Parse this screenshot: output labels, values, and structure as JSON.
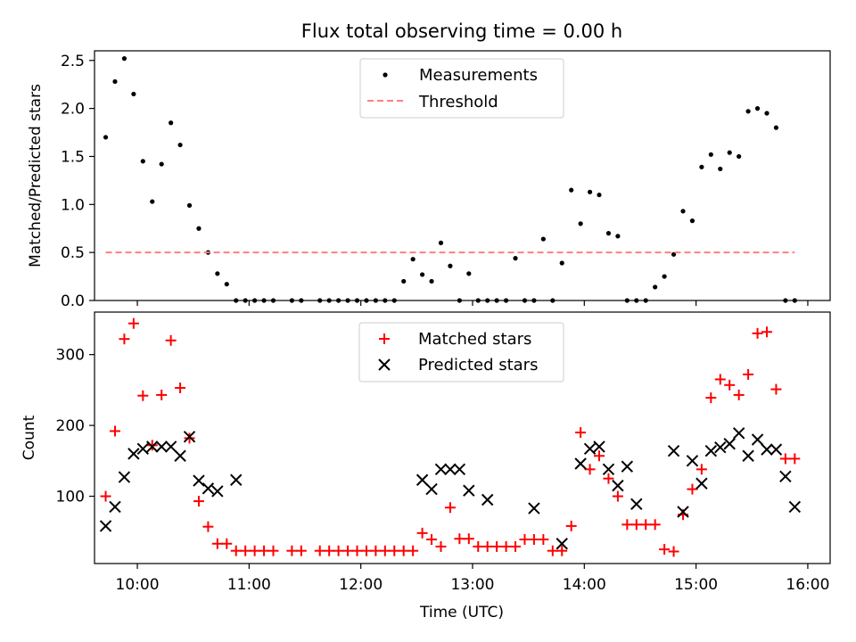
{
  "chart_data": [
    {
      "type": "scatter",
      "title": "Flux total observing time = 0.00 h",
      "xlabel": "",
      "ylabel": "Matched/Predicted stars",
      "ylim": [
        0,
        2.6
      ],
      "xlim": [
        "09:37",
        "16:12"
      ],
      "yticks": [
        "0.0",
        "0.5",
        "1.0",
        "1.5",
        "2.0",
        "2.5"
      ],
      "legend_position": "top-center",
      "series": [
        {
          "name": "Measurements",
          "marker": "dot",
          "color": "#000000",
          "x": [
            "09:43",
            "09:48",
            "09:53",
            "09:58",
            "10:03",
            "10:08",
            "10:13",
            "10:18",
            "10:23",
            "10:28",
            "10:33",
            "10:38",
            "10:43",
            "10:48",
            "10:53",
            "10:58",
            "11:03",
            "11:08",
            "11:13",
            "11:23",
            "11:28",
            "11:38",
            "11:43",
            "11:48",
            "11:53",
            "11:58",
            "12:03",
            "12:08",
            "12:13",
            "12:18",
            "12:23",
            "12:28",
            "12:33",
            "12:38",
            "12:43",
            "12:48",
            "12:53",
            "12:58",
            "13:03",
            "13:08",
            "13:13",
            "13:18",
            "13:23",
            "13:28",
            "13:33",
            "13:38",
            "13:43",
            "13:48",
            "13:53",
            "13:58",
            "14:03",
            "14:08",
            "14:13",
            "14:18",
            "14:23",
            "14:28",
            "14:33",
            "14:38",
            "14:43",
            "14:48",
            "14:53",
            "14:58",
            "15:03",
            "15:08",
            "15:13",
            "15:18",
            "15:23",
            "15:28",
            "15:33",
            "15:38",
            "15:43",
            "15:48",
            "15:53"
          ],
          "y": [
            1.7,
            2.28,
            2.52,
            2.15,
            1.45,
            1.03,
            1.42,
            1.85,
            1.62,
            0.99,
            0.75,
            0.5,
            0.28,
            0.17,
            0.0,
            0.0,
            0.0,
            0.0,
            0.0,
            0.0,
            0.0,
            0.0,
            0.0,
            0.0,
            0.0,
            0.0,
            0.0,
            0.0,
            0.0,
            0.0,
            0.2,
            0.43,
            0.27,
            0.2,
            0.6,
            0.36,
            0.0,
            0.28,
            0.0,
            0.0,
            0.0,
            0.0,
            0.44,
            0.0,
            0.0,
            0.64,
            0.0,
            0.39,
            1.15,
            0.8,
            1.13,
            1.1,
            0.7,
            0.67,
            0.0,
            0.0,
            0.0,
            0.14,
            0.25,
            0.48,
            0.93,
            0.83,
            1.39,
            1.52,
            1.37,
            1.54,
            1.5,
            1.97,
            2.0,
            1.95,
            1.8,
            0.0,
            0.0
          ]
        },
        {
          "name": "Threshold",
          "style": "dashed",
          "color": "#ff7f7f",
          "x": [
            "09:43",
            "15:53"
          ],
          "y": [
            0.5,
            0.5
          ]
        }
      ]
    },
    {
      "type": "scatter",
      "xlabel": "Time (UTC)",
      "ylabel": "Count",
      "ylim": [
        5,
        360
      ],
      "xlim": [
        "09:37",
        "16:12"
      ],
      "xticks": [
        "10:00",
        "11:00",
        "12:00",
        "13:00",
        "14:00",
        "15:00",
        "16:00"
      ],
      "yticks": [
        "100",
        "200",
        "300"
      ],
      "legend_position": "top-center",
      "series": [
        {
          "name": "Matched stars",
          "marker": "plus",
          "color": "#ff0000",
          "x": [
            "09:43",
            "09:48",
            "09:53",
            "09:58",
            "10:03",
            "10:08",
            "10:13",
            "10:18",
            "10:23",
            "10:28",
            "10:33",
            "10:38",
            "10:43",
            "10:48",
            "10:53",
            "10:58",
            "11:03",
            "11:08",
            "11:13",
            "11:23",
            "11:28",
            "11:38",
            "11:43",
            "11:48",
            "11:53",
            "11:58",
            "12:03",
            "12:08",
            "12:13",
            "12:18",
            "12:23",
            "12:28",
            "12:33",
            "12:38",
            "12:43",
            "12:48",
            "12:53",
            "12:58",
            "13:03",
            "13:08",
            "13:13",
            "13:18",
            "13:23",
            "13:28",
            "13:33",
            "13:38",
            "13:43",
            "13:48",
            "13:53",
            "13:58",
            "14:03",
            "14:08",
            "14:13",
            "14:18",
            "14:23",
            "14:28",
            "14:33",
            "14:38",
            "14:43",
            "14:48",
            "14:53",
            "14:58",
            "15:03",
            "15:08",
            "15:13",
            "15:18",
            "15:23",
            "15:28",
            "15:33",
            "15:38",
            "15:43",
            "15:48",
            "15:53"
          ],
          "y": [
            100,
            192,
            322,
            344,
            242,
            172,
            243,
            320,
            253,
            182,
            93,
            57,
            33,
            33,
            23,
            23,
            23,
            23,
            23,
            23,
            23,
            23,
            23,
            23,
            23,
            23,
            23,
            23,
            23,
            23,
            23,
            23,
            48,
            39,
            29,
            84,
            40,
            40,
            29,
            29,
            29,
            29,
            29,
            39,
            39,
            39,
            23,
            23,
            58,
            190,
            138,
            157,
            125,
            100,
            60,
            60,
            60,
            60,
            25,
            22,
            74,
            110,
            138,
            239,
            265,
            257,
            243,
            272,
            330,
            332,
            251,
            153,
            153
          ]
        },
        {
          "name": "Predicted stars",
          "marker": "x",
          "color": "#000000",
          "x": [
            "09:43",
            "09:48",
            "09:53",
            "09:58",
            "10:03",
            "10:08",
            "10:13",
            "10:18",
            "10:23",
            "10:28",
            "10:33",
            "10:38",
            "10:43",
            "10:53",
            "12:33",
            "12:38",
            "12:43",
            "12:48",
            "12:53",
            "12:58",
            "13:08",
            "13:33",
            "13:48",
            "13:58",
            "14:03",
            "14:08",
            "14:13",
            "14:18",
            "14:23",
            "14:28",
            "14:48",
            "14:53",
            "14:58",
            "15:03",
            "15:08",
            "15:13",
            "15:18",
            "15:23",
            "15:28",
            "15:33",
            "15:38",
            "15:43",
            "15:48",
            "15:53"
          ],
          "y": [
            58,
            85,
            127,
            160,
            167,
            170,
            170,
            170,
            157,
            184,
            122,
            111,
            107,
            123,
            123,
            110,
            138,
            138,
            138,
            108,
            95,
            83,
            33,
            146,
            167,
            170,
            138,
            115,
            142,
            89,
            164,
            78,
            150,
            118,
            164,
            169,
            174,
            189,
            157,
            180,
            166,
            166,
            128,
            85
          ]
        }
      ]
    }
  ]
}
